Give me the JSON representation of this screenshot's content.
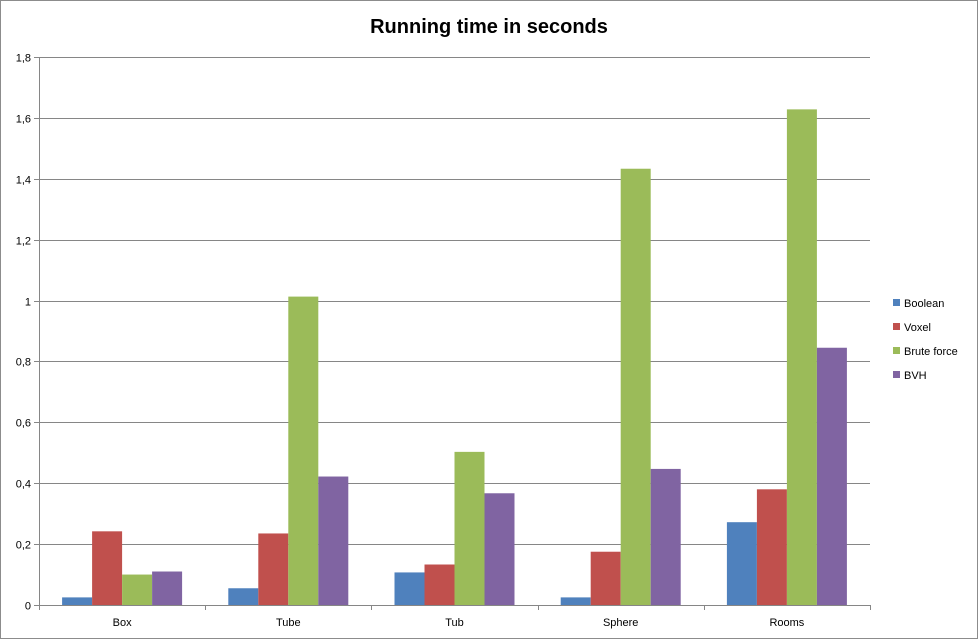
{
  "chart_data": {
    "type": "bar",
    "title": "Running time in seconds",
    "xlabel": "",
    "ylabel": "",
    "categories": [
      "Box",
      "Tube",
      "Tub",
      "Sphere",
      "Rooms"
    ],
    "ylim": [
      0,
      1.8
    ],
    "yticks": [
      0,
      0.2,
      0.4,
      0.6,
      0.8,
      1,
      1.2,
      1.4,
      1.6,
      1.8
    ],
    "ytick_labels": [
      "0",
      "0,2",
      "0,4",
      "0,6",
      "0,8",
      "1",
      "1,2",
      "1,4",
      "1,6",
      "1,8"
    ],
    "grid": true,
    "legend_position": "right",
    "series": [
      {
        "name": "Boolean",
        "color": "#4f81bd",
        "values": [
          0.025,
          0.055,
          0.107,
          0.025,
          0.272
        ]
      },
      {
        "name": "Voxel",
        "color": "#c0504d",
        "values": [
          0.242,
          0.235,
          0.133,
          0.175,
          0.38
        ]
      },
      {
        "name": "Brute force",
        "color": "#9bbb59",
        "values": [
          0.1,
          1.013,
          0.503,
          1.433,
          1.628
        ]
      },
      {
        "name": "BVH",
        "color": "#8064a2",
        "values": [
          0.11,
          0.422,
          0.367,
          0.447,
          0.845
        ]
      }
    ]
  }
}
